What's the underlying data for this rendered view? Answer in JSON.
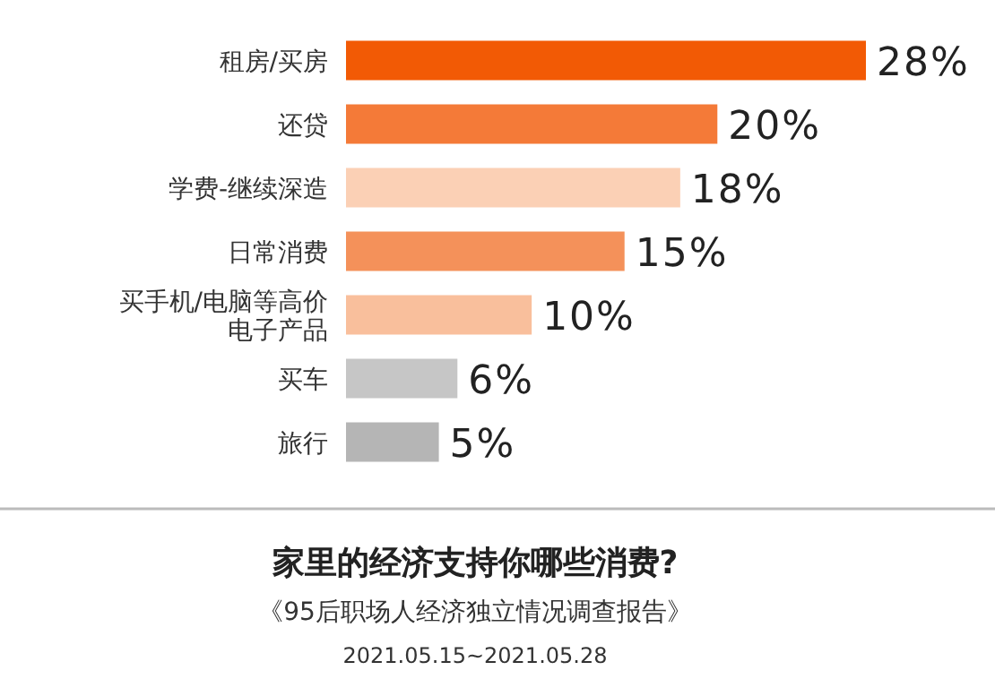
{
  "chart_data": {
    "type": "bar",
    "orientation": "horizontal",
    "data_labels": true,
    "title": "家里的经济支持你哪些消费?",
    "subtitle": "《95后职场人经济独立情况调查报告》",
    "annotations": [
      "2021.05.15~2021.05.28"
    ],
    "categories": [
      "租房/买房",
      "还贷",
      "学费-继续深造",
      "日常消费",
      "买手机/电脑等高价电子产品",
      "买车",
      "旅行"
    ],
    "values": [
      28,
      20,
      18,
      15,
      10,
      6,
      5
    ],
    "value_labels": [
      "28%",
      "20%",
      "18%",
      "15%",
      "10%",
      "6%",
      "5%"
    ],
    "colors": [
      "#f25a05",
      "#f47a38",
      "#fbd0b5",
      "#f4915a",
      "#f9bf9c",
      "#c6c6c6",
      "#b5b5b5"
    ]
  }
}
